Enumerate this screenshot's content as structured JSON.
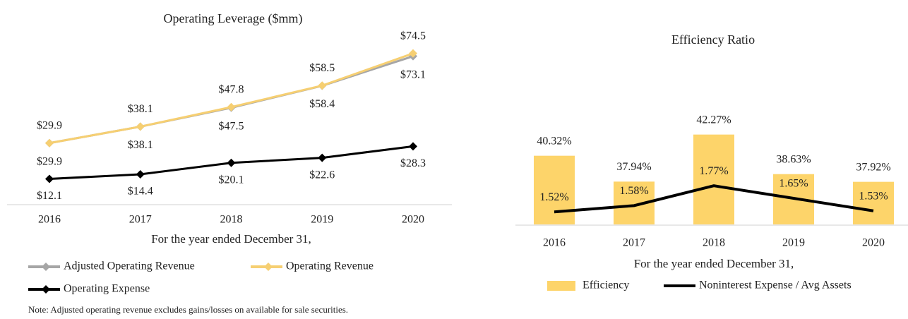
{
  "chart_data": [
    {
      "type": "line",
      "title": "Operating Leverage ($mm)",
      "x_label": "For the year ended December 31,",
      "categories": [
        "2016",
        "2017",
        "2018",
        "2019",
        "2020"
      ],
      "ylim": [
        0,
        100
      ],
      "series": [
        {
          "name": "Adjusted Operating Revenue",
          "color": "#a6a6a6",
          "values": [
            29.9,
            38.1,
            47.5,
            58.4,
            73.1
          ],
          "value_labels": [
            "$29.9",
            "$38.1",
            "$47.5",
            "$58.4",
            "$73.1"
          ]
        },
        {
          "name": "Operating Revenue",
          "color": "#f6cf72",
          "values": [
            29.9,
            38.1,
            47.8,
            58.5,
            74.5
          ],
          "value_labels": [
            "$29.9",
            "$38.1",
            "$47.8",
            "$58.5",
            "$74.5"
          ]
        },
        {
          "name": "Operating Expense",
          "color": "#000000",
          "values": [
            12.1,
            14.4,
            20.1,
            22.6,
            28.3
          ],
          "value_labels": [
            "$12.1",
            "$14.4",
            "$20.1",
            "$22.6",
            "$28.3"
          ]
        }
      ],
      "note": "Note: Adjusted operating revenue excludes gains/losses on available for sale securities."
    },
    {
      "type": "bar",
      "title": "Efficiency Ratio",
      "x_label": "For the year ended December 31,",
      "categories": [
        "2016",
        "2017",
        "2018",
        "2019",
        "2020"
      ],
      "ylim": [
        34,
        44
      ],
      "y2lim": [
        1.4,
        2.44
      ],
      "series": [
        {
          "name": "Efficiency",
          "color": "#fdd46a",
          "values": [
            40.32,
            37.94,
            42.27,
            38.63,
            37.92
          ],
          "value_labels": [
            "40.32%",
            "37.94%",
            "42.27%",
            "38.63%",
            "37.92%"
          ]
        },
        {
          "name": "Noninterest Expense / Avg Assets",
          "type": "line",
          "axis": "y2",
          "color": "#000000",
          "values": [
            1.52,
            1.58,
            1.77,
            1.65,
            1.53
          ],
          "value_labels": [
            "1.52%",
            "1.58%",
            "1.77%",
            "1.65%",
            "1.53%"
          ]
        }
      ]
    }
  ]
}
